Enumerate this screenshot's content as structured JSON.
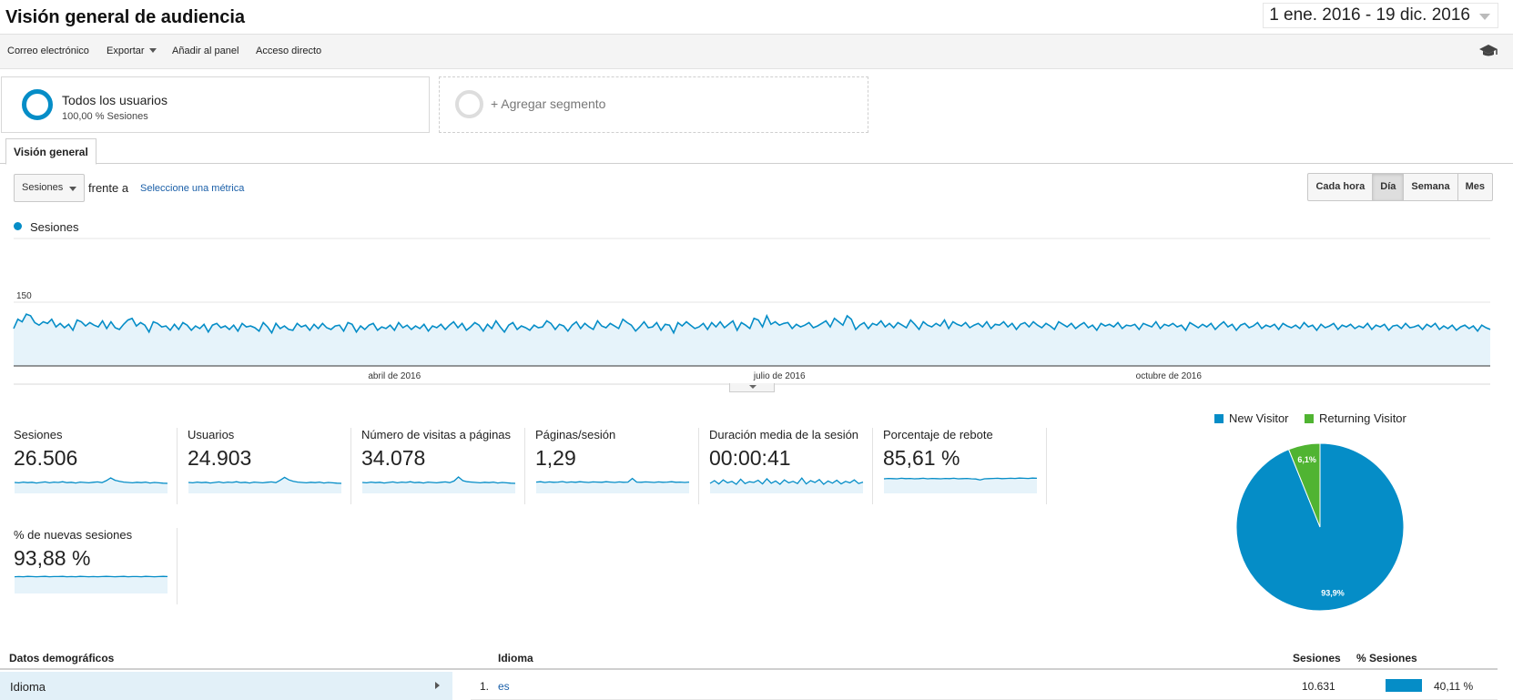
{
  "header": {
    "title": "Visión general de audiencia",
    "date_range": "1 ene. 2016 - 19 dic. 2016"
  },
  "toolbar": {
    "email": "Correo electrónico",
    "export": "Exportar",
    "add_dashboard": "Añadir al panel",
    "shortcut": "Acceso directo",
    "icon": "graduation-cap-icon"
  },
  "segments": {
    "all_users_title": "Todos los usuarios",
    "all_users_sub": "100,00 % Sesiones",
    "add_segment": "+ Agregar segmento"
  },
  "tabs": {
    "overview": "Visión general"
  },
  "chart_controls": {
    "metric": "Sesiones",
    "versus": "frente a",
    "select_metric": "Seleccione una métrica",
    "granularity": [
      "Cada hora",
      "Día",
      "Semana",
      "Mes"
    ],
    "active_granularity": "Día"
  },
  "colors": {
    "accent": "#058dc7",
    "area_fill": "#e6f3fa",
    "returning": "#50b432",
    "link": "#1a5fa8"
  },
  "chart_data": [
    {
      "type": "area",
      "title": "",
      "series": [
        {
          "name": "Sesiones",
          "values": [
            88,
            110,
            104,
            122,
            118,
            102,
            96,
            104,
            100,
            110,
            92,
            100,
            90,
            98,
            84,
            108,
            104,
            94,
            102,
            96,
            92,
            106,
            88,
            104,
            90,
            86,
            98,
            108,
            112,
            94,
            102,
            96,
            80,
            104,
            100,
            92,
            94,
            84,
            98,
            86,
            102,
            96,
            84,
            94,
            88,
            98,
            80,
            96,
            100,
            90,
            94,
            86,
            96,
            82,
            100,
            92,
            94,
            90,
            82,
            102,
            92,
            78,
            100,
            88,
            94,
            86,
            84,
            100,
            92,
            96,
            84,
            98,
            88,
            100,
            90,
            86,
            94,
            96,
            82,
            102,
            98,
            80,
            94,
            86,
            96,
            100,
            84,
            92,
            88,
            96,
            84,
            102,
            90,
            96,
            86,
            94,
            88,
            98,
            82,
            94,
            90,
            98,
            86,
            96,
            104,
            90,
            100,
            84,
            92,
            102,
            96,
            82,
            98,
            88,
            106,
            92,
            80,
            96,
            102,
            86,
            94,
            90,
            84,
            96,
            90,
            92,
            106,
            100,
            86,
            98,
            94,
            82,
            96,
            104,
            88,
            100,
            92,
            86,
            106,
            94,
            90,
            100,
            94,
            88,
            110,
            102,
            96,
            82,
            92,
            104,
            90,
            92,
            102,
            84,
            98,
            96,
            78,
            102,
            94,
            104,
            96,
            88,
            92,
            100,
            86,
            102,
            92,
            104,
            90,
            98,
            106,
            84,
            102,
            96,
            88,
            112,
            108,
            92,
            118,
            98,
            104,
            96,
            100,
            102,
            88,
            98,
            92,
            96,
            102,
            90,
            94,
            100,
            106,
            92,
            112,
            104,
            96,
            118,
            110,
            86,
            96,
            102,
            88,
            100,
            96,
            106,
            92,
            100,
            90,
            102,
            96,
            90,
            108,
            98,
            86,
            104,
            96,
            92,
            100,
            94,
            108,
            88,
            104,
            98,
            94,
            102,
            90,
            96,
            100,
            92,
            104,
            88,
            98,
            96,
            104,
            92,
            100,
            86,
            98,
            102,
            92,
            104,
            96,
            90,
            100,
            94,
            86,
            104,
            98,
            92,
            100,
            88,
            96,
            102,
            90,
            96,
            84,
            100,
            94,
            98,
            92,
            102,
            88,
            96,
            94,
            98,
            86,
            100,
            96,
            92,
            104,
            88,
            98,
            94,
            100,
            92,
            96,
            84,
            102,
            96,
            90,
            98,
            92,
            100,
            86,
            96,
            104,
            92,
            98,
            84,
            96,
            100,
            90,
            94,
            102,
            88,
            96,
            92,
            98,
            86,
            100,
            94,
            90,
            96,
            88,
            102,
            92,
            96,
            84,
            98,
            90,
            94,
            100,
            86,
            96,
            92,
            98,
            88,
            94,
            90,
            100,
            86,
            96,
            92,
            98,
            84,
            94,
            96,
            88,
            100,
            90,
            92,
            96,
            86,
            98,
            92,
            100,
            86,
            94,
            88,
            96,
            84,
            92,
            96,
            88,
            94,
            82,
            96,
            90,
            86
          ]
        }
      ],
      "x_labels": [
        "abril de 2016",
        "julio de 2016",
        "octubre de 2016"
      ],
      "y_ticks": [
        150,
        300
      ],
      "ylim": [
        0,
        300
      ],
      "legend": "top-left"
    },
    {
      "type": "pie",
      "categories": [
        "New Visitor",
        "Returning Visitor"
      ],
      "values": [
        93.9,
        6.1
      ],
      "labels": [
        "93,9%",
        "6,1%"
      ],
      "legend": "top"
    }
  ],
  "kpis": [
    {
      "label": "Sesiones",
      "value": "26.506",
      "trend": [
        60,
        58,
        62,
        59,
        61,
        57,
        60,
        63,
        58,
        62,
        60,
        64,
        59,
        61,
        57,
        62,
        60,
        58,
        61,
        63,
        59,
        70,
        85,
        72,
        66,
        62,
        60,
        58,
        61,
        59,
        62,
        57,
        60,
        58,
        56,
        55
      ]
    },
    {
      "label": "Usuarios",
      "value": "24.903",
      "trend": [
        60,
        58,
        62,
        59,
        61,
        57,
        60,
        63,
        58,
        62,
        60,
        64,
        59,
        61,
        57,
        62,
        60,
        58,
        61,
        63,
        59,
        72,
        88,
        74,
        66,
        62,
        60,
        58,
        61,
        59,
        62,
        57,
        60,
        58,
        56,
        55
      ]
    },
    {
      "label": "Número de visitas a páginas",
      "value": "34.078",
      "trend": [
        60,
        58,
        62,
        59,
        61,
        57,
        60,
        63,
        58,
        62,
        60,
        64,
        59,
        61,
        57,
        62,
        60,
        58,
        61,
        63,
        59,
        68,
        90,
        70,
        64,
        62,
        60,
        58,
        61,
        59,
        62,
        57,
        60,
        58,
        56,
        55
      ]
    },
    {
      "label": "Páginas/sesión",
      "value": "1,29",
      "trend": [
        62,
        64,
        60,
        63,
        61,
        62,
        65,
        60,
        63,
        61,
        64,
        62,
        60,
        63,
        62,
        61,
        64,
        62,
        60,
        63,
        61,
        62,
        82,
        62,
        61,
        63,
        62,
        60,
        63,
        61,
        62,
        64,
        61,
        62,
        60,
        62
      ]
    },
    {
      "label": "Duración media de la sesión",
      "value": "00:00:41",
      "trend": [
        55,
        70,
        52,
        74,
        58,
        66,
        50,
        78,
        54,
        64,
        60,
        72,
        52,
        80,
        56,
        68,
        50,
        74,
        58,
        66,
        54,
        84,
        52,
        70,
        60,
        76,
        50,
        68,
        56,
        72,
        52,
        66,
        58,
        74,
        54,
        62
      ]
    },
    {
      "label": "Porcentaje de rebote",
      "value": "85,61 %",
      "trend": [
        80,
        82,
        81,
        80,
        83,
        81,
        82,
        80,
        81,
        83,
        80,
        82,
        81,
        80,
        82,
        81,
        83,
        80,
        81,
        82,
        80,
        79,
        74,
        80,
        81,
        82,
        83,
        81,
        82,
        83,
        82,
        84,
        83,
        82,
        84,
        83
      ]
    },
    {
      "label": "% de nuevas sesiones",
      "value": "93,88 %",
      "trend": [
        92,
        93,
        92,
        94,
        93,
        92,
        93,
        94,
        92,
        93,
        93,
        94,
        92,
        93,
        92,
        94,
        93,
        92,
        93,
        92,
        93,
        94,
        93,
        92,
        93,
        94,
        92,
        93,
        93,
        92,
        94,
        93,
        92,
        93,
        94,
        93
      ]
    }
  ],
  "demographics": {
    "header": "Datos demográficos",
    "item": "Idioma"
  },
  "table": {
    "headers": {
      "dimension": "Idioma",
      "sessions": "Sesiones",
      "pct_sessions": "% Sesiones"
    },
    "rows": [
      {
        "rank": "1.",
        "dimension": "es",
        "sessions": "10.631",
        "pct": "40,11 %",
        "pct_value": 40.11
      }
    ]
  }
}
